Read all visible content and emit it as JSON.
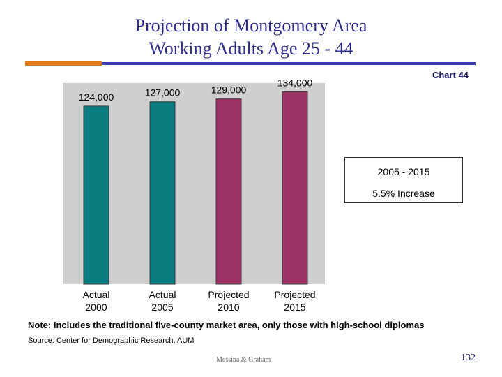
{
  "slide": {
    "title_line1": "Projection of Montgomery Area",
    "title_line2": "Working Adults Age 25 - 44",
    "chart_id": "Chart 44",
    "callout_line1": "2005 - 2015",
    "callout_line2": "5.5% Increase",
    "note": "Note:  Includes the traditional five-county market area, only those with high-school diplomas",
    "source": "Source:  Center for Demographic Research, AUM",
    "footer": "Messina & Graham",
    "page_number": "132"
  },
  "colors": {
    "actual": "#0a7e7e",
    "projected": "#9b3264",
    "plot_bg": "#cfcfcf"
  },
  "chart_data": {
    "type": "bar",
    "title": "Projection of Montgomery Area Working Adults Age 25 - 44",
    "categories": [
      [
        "Actual",
        "2000"
      ],
      [
        "Actual",
        "2005"
      ],
      [
        "Projected",
        "2010"
      ],
      [
        "Projected",
        "2015"
      ]
    ],
    "values": [
      124000,
      127000,
      129000,
      134000
    ],
    "value_labels": [
      "124,000",
      "127,000",
      "129,000",
      "134,000"
    ],
    "series_kind": [
      "actual",
      "actual",
      "projected",
      "projected"
    ],
    "xlabel": "",
    "ylabel": "",
    "ylim": [
      0,
      140000
    ],
    "grid": false,
    "legend": "none"
  }
}
